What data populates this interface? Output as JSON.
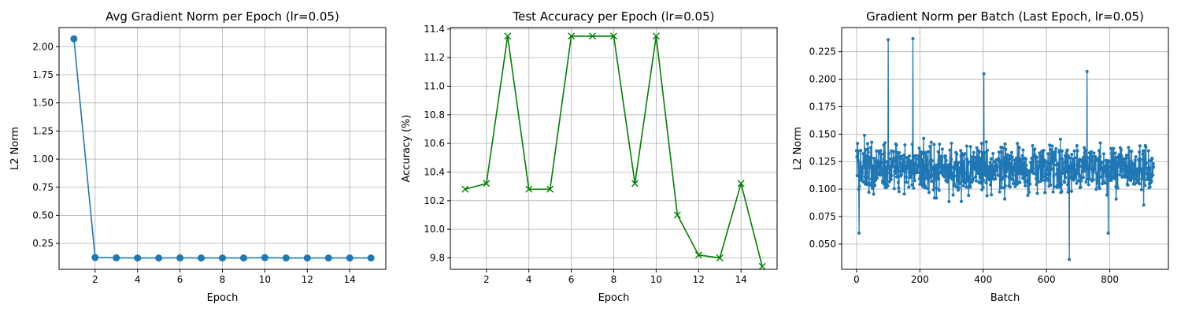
{
  "figure": {
    "background": "#ffffff"
  },
  "chart_data": [
    {
      "type": "line",
      "title": "Avg Gradient Norm per Epoch (lr=0.05)",
      "xlabel": "Epoch",
      "ylabel": "L2 Norm",
      "grid": true,
      "xlim": [
        0.3,
        15.7
      ],
      "ylim": [
        0.02,
        2.17
      ],
      "xticks": [
        2,
        4,
        6,
        8,
        10,
        12,
        14
      ],
      "yticks": [
        0.25,
        0.5,
        0.75,
        1.0,
        1.25,
        1.5,
        1.75,
        2.0
      ],
      "ytick_labels": [
        "0.25",
        "0.50",
        "0.75",
        "1.00",
        "1.25",
        "1.50",
        "1.75",
        "2.00"
      ],
      "series": [
        {
          "color": "#1f77b4",
          "marker": "circle",
          "x": [
            1,
            2,
            3,
            4,
            5,
            6,
            7,
            8,
            9,
            10,
            11,
            12,
            13,
            14,
            15
          ],
          "y": [
            2.07,
            0.125,
            0.122,
            0.121,
            0.121,
            0.122,
            0.121,
            0.121,
            0.121,
            0.124,
            0.121,
            0.121,
            0.121,
            0.121,
            0.121
          ]
        }
      ]
    },
    {
      "type": "line",
      "title": "Test Accuracy per Epoch (lr=0.05)",
      "xlabel": "Epoch",
      "ylabel": "Accuracy (%)",
      "grid": true,
      "xlim": [
        0.3,
        15.7
      ],
      "ylim": [
        9.72,
        11.41
      ],
      "xticks": [
        2,
        4,
        6,
        8,
        10,
        12,
        14
      ],
      "yticks": [
        9.8,
        10.0,
        10.2,
        10.4,
        10.6,
        10.8,
        11.0,
        11.2,
        11.4
      ],
      "ytick_labels": [
        "9.8",
        "10.0",
        "10.2",
        "10.4",
        "10.6",
        "10.8",
        "11.0",
        "11.2",
        "11.4"
      ],
      "series": [
        {
          "color": "#008000",
          "marker": "x",
          "x": [
            1,
            2,
            3,
            4,
            5,
            6,
            7,
            8,
            9,
            10,
            11,
            12,
            13,
            14,
            15
          ],
          "y": [
            10.28,
            10.32,
            11.35,
            10.28,
            10.28,
            11.35,
            11.35,
            11.35,
            10.32,
            11.35,
            10.1,
            9.82,
            9.8,
            10.32,
            9.74
          ]
        }
      ]
    },
    {
      "type": "line",
      "title": "Gradient Norm per Batch (Last Epoch, lr=0.05)",
      "xlabel": "Batch",
      "ylabel": "L2 Norm",
      "grid": true,
      "xlim": [
        -47,
        985
      ],
      "ylim": [
        0.027,
        0.247
      ],
      "xticks": [
        0,
        200,
        400,
        600,
        800
      ],
      "yticks": [
        0.05,
        0.075,
        0.1,
        0.125,
        0.15,
        0.175,
        0.2,
        0.225
      ],
      "ytick_labels": [
        "0.050",
        "0.075",
        "0.100",
        "0.125",
        "0.150",
        "0.175",
        "0.200",
        "0.225"
      ],
      "series": [
        {
          "color": "#1f77b4",
          "marker": "dot",
          "n_points": 938,
          "approx_mean": 0.118,
          "approx_spread": 0.024,
          "x": [
            0,
            8,
            100,
            178,
            402,
            672,
            728,
            795,
            938
          ],
          "y": [
            0.135,
            0.06,
            0.236,
            0.237,
            0.205,
            0.036,
            0.207,
            0.06,
            0.12
          ]
        }
      ]
    }
  ]
}
